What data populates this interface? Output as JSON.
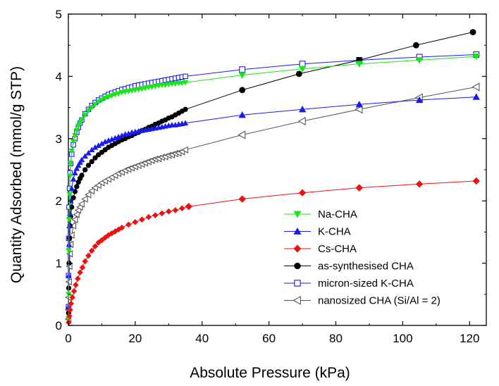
{
  "chart_data": {
    "type": "scatter",
    "xlabel": "Absolute Pressure (kPa)",
    "ylabel": "Quantity Adsorbed (mmol/g STP)",
    "xlim": [
      0,
      125
    ],
    "ylim": [
      0,
      5
    ],
    "xticks": [
      0,
      20,
      40,
      60,
      80,
      100,
      120
    ],
    "yticks": [
      0,
      1,
      2,
      3,
      4,
      5
    ],
    "grid": false,
    "legend_position": "bottom-right",
    "series": [
      {
        "name": "Na-CHA",
        "color": "#19e619",
        "marker": "triangle-down",
        "x": [
          0.02,
          0.05,
          0.1,
          0.2,
          0.35,
          0.5,
          0.7,
          1.0,
          1.5,
          2,
          2.5,
          3,
          3.5,
          4,
          5,
          6,
          7,
          8,
          9,
          10,
          11,
          12,
          13,
          14,
          15,
          16,
          17,
          18,
          19,
          20,
          21,
          22,
          23,
          24,
          25,
          26,
          27,
          28,
          29,
          30,
          31,
          32,
          33,
          34,
          35,
          52,
          70,
          87,
          105,
          122
        ],
        "y": [
          0.1,
          0.5,
          1.2,
          1.7,
          2.1,
          2.4,
          2.6,
          2.8,
          2.95,
          3.05,
          3.13,
          3.2,
          3.25,
          3.3,
          3.38,
          3.45,
          3.5,
          3.55,
          3.59,
          3.62,
          3.65,
          3.67,
          3.69,
          3.71,
          3.72,
          3.74,
          3.75,
          3.76,
          3.77,
          3.78,
          3.79,
          3.8,
          3.81,
          3.82,
          3.83,
          3.84,
          3.85,
          3.86,
          3.86,
          3.87,
          3.88,
          3.88,
          3.89,
          3.89,
          3.9,
          4.02,
          4.12,
          4.2,
          4.26,
          4.32
        ]
      },
      {
        "name": "K-CHA",
        "color": "#1a1aee",
        "marker": "triangle-up",
        "x": [
          0.05,
          0.1,
          0.2,
          0.35,
          0.5,
          0.7,
          1.0,
          1.5,
          2,
          2.5,
          3,
          3.5,
          4,
          5,
          6,
          7,
          8,
          9,
          10,
          11,
          12,
          13,
          14,
          15,
          16,
          17,
          18,
          19,
          20,
          21,
          22,
          23,
          24,
          25,
          26,
          27,
          28,
          29,
          30,
          31,
          32,
          33,
          34,
          35,
          52,
          70,
          87,
          105,
          122
        ],
        "y": [
          0.3,
          0.8,
          1.3,
          1.6,
          1.8,
          2.0,
          2.2,
          2.35,
          2.45,
          2.52,
          2.57,
          2.62,
          2.66,
          2.72,
          2.77,
          2.82,
          2.86,
          2.89,
          2.92,
          2.95,
          2.97,
          2.99,
          3.01,
          3.03,
          3.05,
          3.07,
          3.08,
          3.1,
          3.11,
          3.12,
          3.13,
          3.14,
          3.15,
          3.16,
          3.17,
          3.18,
          3.19,
          3.2,
          3.21,
          3.22,
          3.22,
          3.23,
          3.24,
          3.25,
          3.38,
          3.47,
          3.55,
          3.62,
          3.67
        ]
      },
      {
        "name": "Cs-CHA",
        "color": "#ee1111",
        "marker": "diamond",
        "x": [
          0.1,
          0.3,
          0.5,
          0.8,
          1.2,
          1.7,
          2.2,
          2.8,
          3.5,
          4.2,
          5,
          6,
          7,
          8,
          9,
          10,
          11,
          12,
          13,
          14,
          15,
          16,
          18,
          20,
          22,
          24,
          26,
          28,
          30,
          32,
          34,
          36,
          52,
          70,
          87,
          105,
          122
        ],
        "y": [
          0.05,
          0.15,
          0.25,
          0.35,
          0.45,
          0.55,
          0.65,
          0.75,
          0.85,
          0.93,
          1.03,
          1.12,
          1.2,
          1.27,
          1.33,
          1.37,
          1.41,
          1.45,
          1.48,
          1.51,
          1.54,
          1.57,
          1.62,
          1.66,
          1.7,
          1.74,
          1.77,
          1.8,
          1.83,
          1.85,
          1.88,
          1.91,
          2.03,
          2.13,
          2.21,
          2.27,
          2.32
        ]
      },
      {
        "name": "as-synthesised CHA",
        "color": "#000000",
        "marker": "circle",
        "x": [
          0.05,
          0.1,
          0.2,
          0.35,
          0.5,
          0.7,
          1.0,
          1.5,
          2,
          2.5,
          3,
          3.5,
          4,
          5,
          6,
          7,
          8,
          9,
          10,
          11,
          12,
          13,
          14,
          15,
          16,
          17,
          18,
          19,
          20,
          21,
          22,
          23,
          24,
          25,
          26,
          27,
          28,
          29,
          30,
          31,
          32,
          33,
          34,
          35,
          52,
          69,
          87,
          104,
          121
        ],
        "y": [
          0.2,
          0.6,
          1.0,
          1.4,
          1.6,
          1.75,
          1.9,
          2.05,
          2.15,
          2.23,
          2.3,
          2.36,
          2.41,
          2.5,
          2.57,
          2.63,
          2.69,
          2.74,
          2.78,
          2.82,
          2.86,
          2.89,
          2.92,
          2.95,
          2.98,
          3.0,
          3.03,
          3.05,
          3.08,
          3.1,
          3.13,
          3.15,
          3.18,
          3.2,
          3.23,
          3.25,
          3.28,
          3.3,
          3.33,
          3.35,
          3.38,
          3.41,
          3.44,
          3.47,
          3.78,
          4.04,
          4.26,
          4.5,
          4.71
        ]
      },
      {
        "name": "micron-sized K-CHA",
        "color": "#1a1aee",
        "marker": "square-open",
        "x": [
          0.02,
          0.05,
          0.1,
          0.2,
          0.35,
          0.5,
          0.7,
          1.0,
          1.5,
          2,
          2.5,
          3,
          3.5,
          4,
          5,
          6,
          7,
          8,
          9,
          10,
          11,
          12,
          13,
          14,
          15,
          16,
          17,
          18,
          19,
          20,
          21,
          22,
          23,
          24,
          25,
          26,
          27,
          28,
          29,
          30,
          31,
          32,
          33,
          34,
          35,
          52,
          70,
          87,
          105,
          122
        ],
        "y": [
          0.3,
          0.8,
          1.4,
          1.9,
          2.2,
          2.45,
          2.6,
          2.75,
          2.9,
          3.0,
          3.1,
          3.18,
          3.25,
          3.3,
          3.4,
          3.47,
          3.53,
          3.58,
          3.62,
          3.65,
          3.68,
          3.71,
          3.73,
          3.75,
          3.77,
          3.79,
          3.8,
          3.82,
          3.83,
          3.85,
          3.86,
          3.87,
          3.88,
          3.89,
          3.9,
          3.91,
          3.92,
          3.93,
          3.94,
          3.95,
          3.96,
          3.97,
          3.98,
          3.99,
          4.0,
          4.11,
          4.2,
          4.26,
          4.31,
          4.35
        ]
      },
      {
        "name": "nanosized CHA (Si/Al = 2)",
        "color": "#555555",
        "marker": "triangle-left-open",
        "x": [
          0.02,
          0.05,
          0.1,
          0.2,
          0.35,
          0.5,
          0.7,
          1.0,
          1.5,
          2,
          2.5,
          3,
          3.5,
          4,
          5,
          6,
          7,
          8,
          9,
          10,
          11,
          12,
          13,
          14,
          15,
          16,
          17,
          18,
          19,
          20,
          21,
          22,
          23,
          24,
          25,
          26,
          27,
          28,
          29,
          30,
          31,
          32,
          33,
          34,
          35,
          52,
          70,
          87,
          105,
          122
        ],
        "y": [
          0.1,
          0.25,
          0.45,
          0.7,
          0.95,
          1.15,
          1.3,
          1.45,
          1.6,
          1.7,
          1.78,
          1.85,
          1.9,
          1.95,
          2.03,
          2.1,
          2.16,
          2.21,
          2.25,
          2.29,
          2.32,
          2.35,
          2.38,
          2.41,
          2.44,
          2.46,
          2.49,
          2.51,
          2.53,
          2.55,
          2.57,
          2.59,
          2.61,
          2.63,
          2.65,
          2.67,
          2.68,
          2.7,
          2.71,
          2.73,
          2.74,
          2.76,
          2.77,
          2.79,
          2.82,
          3.06,
          3.28,
          3.47,
          3.66,
          3.83
        ]
      }
    ]
  }
}
